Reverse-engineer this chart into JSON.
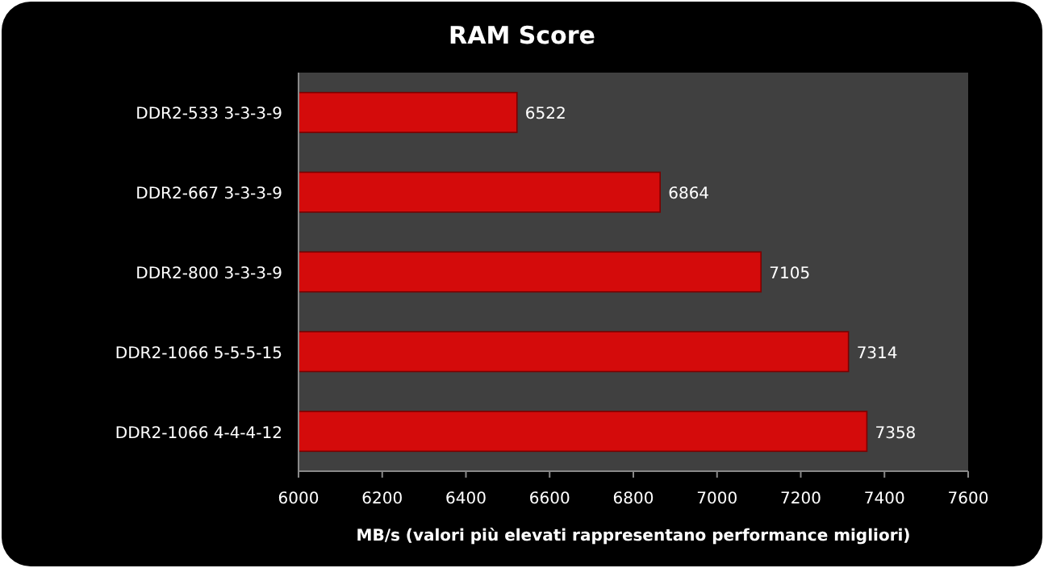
{
  "chart_data": {
    "type": "bar",
    "orientation": "horizontal",
    "title": "RAM Score",
    "xlabel": "MB/s (valori più elevati rappresentano performance migliori)",
    "categories": [
      "DDR2-533 3-3-3-9",
      "DDR2-667 3-3-3-9",
      "DDR2-800 3-3-3-9",
      "DDR2-1066 5-5-5-15",
      "DDR2-1066 4-4-4-12"
    ],
    "values": [
      6522,
      6864,
      7105,
      7314,
      7358
    ],
    "color": "#d40b0b",
    "data_labels": true,
    "xlim": [
      6000,
      7600
    ],
    "xticks": [
      6000,
      6200,
      6400,
      6600,
      6800,
      7000,
      7200,
      7400,
      7600
    ],
    "grid": false
  }
}
